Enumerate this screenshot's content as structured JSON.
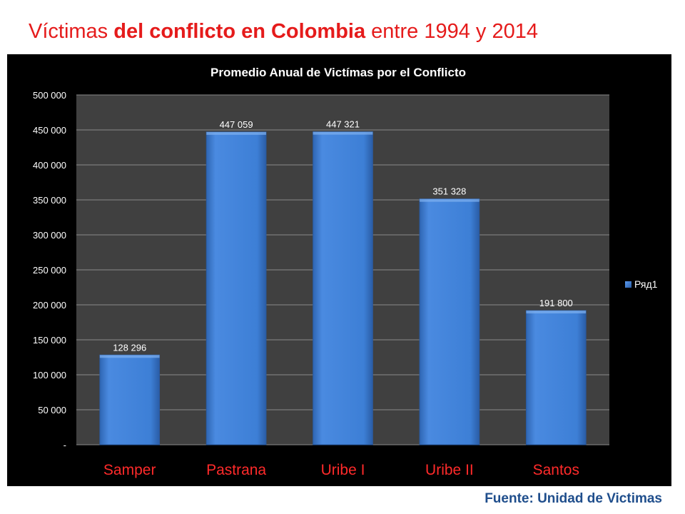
{
  "slide": {
    "title_part1": "Víctimas ",
    "title_part2": "del conflicto en Colombia",
    "title_part3": " entre 1994 y 2014",
    "source": "Fuente: Unidad de Victimas"
  },
  "colors": {
    "title": "#e51b1b",
    "plot_background": "#404040",
    "panel_background": "#000000",
    "bar": "#3d7fd6",
    "category_label": "#ff2a2a",
    "tick_label": "#ffffff",
    "source": "#1f4e8c"
  },
  "chart_data": {
    "type": "bar",
    "title": "Promedio Anual de Victímas por el Conflicto",
    "categories": [
      "Samper",
      "Pastrana",
      "Uribe I",
      "Uribe II",
      "Santos"
    ],
    "series": [
      {
        "name": "Ряд1",
        "values": [
          128296,
          447059,
          447321,
          351328,
          191800
        ],
        "labels": [
          "128 296",
          "447 059",
          "447 321",
          "351 328",
          "191 800"
        ]
      }
    ],
    "ylim": [
      0,
      500000
    ],
    "yticks": [
      0,
      50000,
      100000,
      150000,
      200000,
      250000,
      300000,
      350000,
      400000,
      450000,
      500000
    ],
    "ytick_labels": [
      "-",
      "50 000",
      "100 000",
      "150 000",
      "200 000",
      "250 000",
      "300 000",
      "350 000",
      "400 000",
      "450 000",
      "500 000"
    ],
    "grid": true,
    "legend": "right",
    "xlabel": "",
    "ylabel": ""
  }
}
